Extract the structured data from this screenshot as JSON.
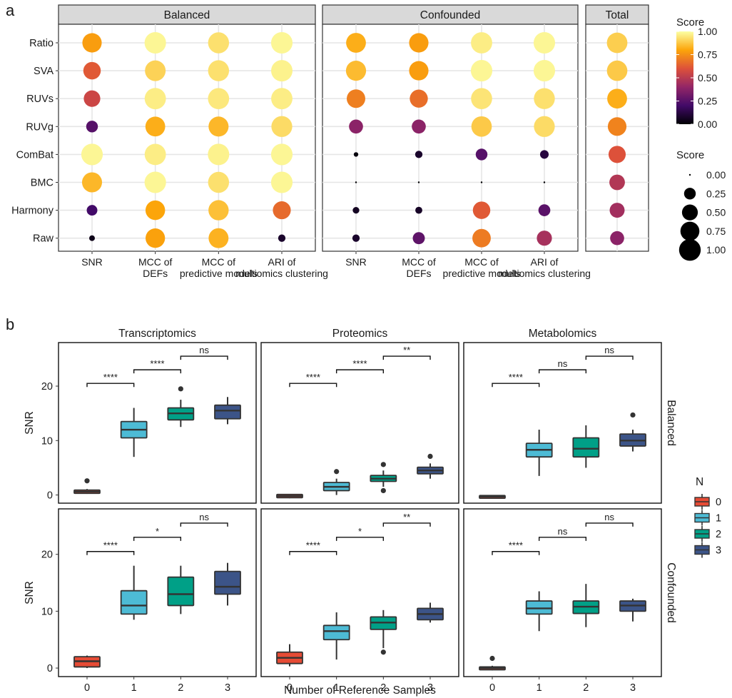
{
  "panel_labels": [
    "a",
    "b"
  ],
  "chart_data": [
    {
      "type": "scatter",
      "subtype": "dot-matrix",
      "facets": [
        {
          "title": "Balanced",
          "columns": [
            "SNR",
            "MCC of DEFs",
            "MCC of predictive models",
            "ARI of multiomics clustering"
          ]
        },
        {
          "title": "Confounded",
          "columns": [
            "SNR",
            "MCC of DEFs",
            "MCC of predictive models",
            "ARI of multiomics clustering"
          ]
        },
        {
          "title": "Total",
          "columns": [
            ""
          ]
        }
      ],
      "rows": [
        "Ratio",
        "SVA",
        "RUVs",
        "RUVg",
        "ComBat",
        "BMC",
        "Harmony",
        "Raw"
      ],
      "values": {
        "Balanced": [
          [
            0.78,
            0.98,
            0.93,
            0.98
          ],
          [
            0.62,
            0.9,
            0.93,
            0.97
          ],
          [
            0.55,
            0.96,
            0.95,
            0.96
          ],
          [
            0.25,
            0.82,
            0.84,
            0.92
          ],
          [
            0.98,
            0.96,
            0.97,
            0.98
          ],
          [
            0.84,
            0.98,
            0.93,
            0.98
          ],
          [
            0.2,
            0.8,
            0.86,
            0.66
          ],
          [
            0.04,
            0.79,
            0.83,
            0.08
          ]
        ],
        "Confounded": [
          [
            0.82,
            0.78,
            0.96,
            0.98
          ],
          [
            0.85,
            0.78,
            0.98,
            0.98
          ],
          [
            0.71,
            0.67,
            0.94,
            0.93
          ],
          [
            0.38,
            0.38,
            0.88,
            0.92
          ],
          [
            0.02,
            0.08,
            0.25,
            0.12
          ],
          [
            0.0,
            0.0,
            0.0,
            0.0
          ],
          [
            0.06,
            0.07,
            0.62,
            0.26
          ],
          [
            0.08,
            0.27,
            0.7,
            0.45
          ]
        ],
        "Total": [
          [
            0.89
          ],
          [
            0.88
          ],
          [
            0.82
          ],
          [
            0.72
          ],
          [
            0.6
          ],
          [
            0.48
          ],
          [
            0.44
          ],
          [
            0.38
          ]
        ]
      },
      "color_legend": {
        "title": "Score",
        "ticks": [
          "1.00",
          "0.75",
          "0.50",
          "0.25",
          "0.00"
        ],
        "colors": [
          "#000004",
          "#420a68",
          "#932667",
          "#dd513a",
          "#fca50a",
          "#fcffa4"
        ]
      },
      "size_legend": {
        "title": "Score",
        "values": [
          "0.00",
          "0.25",
          "0.50",
          "0.75",
          "1.00"
        ]
      },
      "xlim": [
        0,
        1
      ]
    },
    {
      "type": "box",
      "xlabel": "Number of Reference Samples",
      "ylabel": "SNR",
      "col_facets": [
        "Transcriptomics",
        "Proteomics",
        "Metabolomics"
      ],
      "row_facets": [
        "Balanced",
        "Confounded"
      ],
      "x_ticks": [
        "0",
        "1",
        "2",
        "3"
      ],
      "y_ticks": [
        "0",
        "10",
        "20"
      ],
      "ylim": [
        -1.5,
        28
      ],
      "legend": {
        "title": "N",
        "items": [
          {
            "label": "0",
            "color": "#e64b35"
          },
          {
            "label": "1",
            "color": "#4dbbd5"
          },
          {
            "label": "2",
            "color": "#00a087"
          },
          {
            "label": "3",
            "color": "#3c5488"
          }
        ]
      },
      "panels": [
        {
          "row": "Balanced",
          "col": "Transcriptomics",
          "boxes": [
            {
              "n": 0,
              "q1": 0.3,
              "median": 0.6,
              "q3": 0.9,
              "whisker_low": 0.2,
              "whisker_high": 1.1,
              "outliers": [
                2.6
              ]
            },
            {
              "n": 1,
              "q1": 10.5,
              "median": 12.0,
              "q3": 13.5,
              "whisker_low": 7.0,
              "whisker_high": 16.0,
              "outliers": []
            },
            {
              "n": 2,
              "q1": 13.8,
              "median": 15.0,
              "q3": 16.0,
              "whisker_low": 12.5,
              "whisker_high": 17.5,
              "outliers": [
                19.5
              ]
            },
            {
              "n": 3,
              "q1": 14.0,
              "median": 15.5,
              "q3": 16.5,
              "whisker_low": 13.0,
              "whisker_high": 18.0,
              "outliers": []
            }
          ],
          "significance": [
            {
              "from": 0,
              "to": 1,
              "y": 20.5,
              "label": "****"
            },
            {
              "from": 1,
              "to": 2,
              "y": 23.0,
              "label": "****"
            },
            {
              "from": 2,
              "to": 3,
              "y": 25.5,
              "label": "ns"
            }
          ]
        },
        {
          "row": "Balanced",
          "col": "Proteomics",
          "boxes": [
            {
              "n": 0,
              "q1": -0.5,
              "median": -0.2,
              "q3": 0.1,
              "whisker_low": -0.6,
              "whisker_high": 0.2,
              "outliers": []
            },
            {
              "n": 1,
              "q1": 0.8,
              "median": 1.5,
              "q3": 2.3,
              "whisker_low": 0.0,
              "whisker_high": 3.0,
              "outliers": [
                4.3
              ]
            },
            {
              "n": 2,
              "q1": 2.5,
              "median": 3.0,
              "q3": 3.6,
              "whisker_low": 1.5,
              "whisker_high": 4.5,
              "outliers": [
                5.6,
                0.8
              ]
            },
            {
              "n": 3,
              "q1": 3.9,
              "median": 4.5,
              "q3": 5.1,
              "whisker_low": 3.0,
              "whisker_high": 5.8,
              "outliers": [
                7.1
              ]
            }
          ],
          "significance": [
            {
              "from": 0,
              "to": 1,
              "y": 20.5,
              "label": "****"
            },
            {
              "from": 1,
              "to": 2,
              "y": 23.0,
              "label": "****"
            },
            {
              "from": 2,
              "to": 3,
              "y": 25.5,
              "label": "**"
            }
          ]
        },
        {
          "row": "Balanced",
          "col": "Metabolomics",
          "boxes": [
            {
              "n": 0,
              "q1": -0.6,
              "median": -0.3,
              "q3": -0.1,
              "whisker_low": -0.7,
              "whisker_high": 0.0,
              "outliers": []
            },
            {
              "n": 1,
              "q1": 7.0,
              "median": 8.3,
              "q3": 9.5,
              "whisker_low": 3.5,
              "whisker_high": 12.0,
              "outliers": []
            },
            {
              "n": 2,
              "q1": 7.0,
              "median": 8.5,
              "q3": 10.5,
              "whisker_low": 5.0,
              "whisker_high": 12.8,
              "outliers": []
            },
            {
              "n": 3,
              "q1": 9.0,
              "median": 10.0,
              "q3": 11.2,
              "whisker_low": 8.0,
              "whisker_high": 12.0,
              "outliers": [
                14.7
              ]
            }
          ],
          "significance": [
            {
              "from": 0,
              "to": 1,
              "y": 20.5,
              "label": "****"
            },
            {
              "from": 1,
              "to": 2,
              "y": 23.0,
              "label": "ns"
            },
            {
              "from": 2,
              "to": 3,
              "y": 25.5,
              "label": "ns"
            }
          ]
        },
        {
          "row": "Confounded",
          "col": "Transcriptomics",
          "boxes": [
            {
              "n": 0,
              "q1": 0.2,
              "median": 1.2,
              "q3": 2.0,
              "whisker_low": 0.0,
              "whisker_high": 2.2,
              "outliers": []
            },
            {
              "n": 1,
              "q1": 9.5,
              "median": 11.0,
              "q3": 13.6,
              "whisker_low": 8.5,
              "whisker_high": 18.0,
              "outliers": []
            },
            {
              "n": 2,
              "q1": 11.0,
              "median": 13.0,
              "q3": 16.0,
              "whisker_low": 9.5,
              "whisker_high": 18.0,
              "outliers": []
            },
            {
              "n": 3,
              "q1": 13.0,
              "median": 14.3,
              "q3": 17.0,
              "whisker_low": 11.0,
              "whisker_high": 18.5,
              "outliers": []
            }
          ],
          "significance": [
            {
              "from": 0,
              "to": 1,
              "y": 20.5,
              "label": "****"
            },
            {
              "from": 1,
              "to": 2,
              "y": 23.0,
              "label": "*"
            },
            {
              "from": 2,
              "to": 3,
              "y": 25.5,
              "label": "ns"
            }
          ]
        },
        {
          "row": "Confounded",
          "col": "Proteomics",
          "boxes": [
            {
              "n": 0,
              "q1": 0.8,
              "median": 1.8,
              "q3": 2.8,
              "whisker_low": 0.3,
              "whisker_high": 4.2,
              "outliers": []
            },
            {
              "n": 1,
              "q1": 5.0,
              "median": 6.5,
              "q3": 7.5,
              "whisker_low": 1.5,
              "whisker_high": 9.8,
              "outliers": []
            },
            {
              "n": 2,
              "q1": 6.8,
              "median": 8.0,
              "q3": 9.0,
              "whisker_low": 3.5,
              "whisker_high": 10.2,
              "outliers": [
                2.8
              ]
            },
            {
              "n": 3,
              "q1": 8.5,
              "median": 9.5,
              "q3": 10.5,
              "whisker_low": 8.0,
              "whisker_high": 11.5,
              "outliers": []
            }
          ],
          "significance": [
            {
              "from": 0,
              "to": 1,
              "y": 20.5,
              "label": "****"
            },
            {
              "from": 1,
              "to": 2,
              "y": 23.0,
              "label": "*"
            },
            {
              "from": 2,
              "to": 3,
              "y": 25.5,
              "label": "**"
            }
          ]
        },
        {
          "row": "Confounded",
          "col": "Metabolomics",
          "boxes": [
            {
              "n": 0,
              "q1": -0.3,
              "median": 0.0,
              "q3": 0.2,
              "whisker_low": -0.4,
              "whisker_high": 0.4,
              "outliers": [
                1.7
              ]
            },
            {
              "n": 1,
              "q1": 9.5,
              "median": 10.5,
              "q3": 11.8,
              "whisker_low": 6.5,
              "whisker_high": 13.5,
              "outliers": []
            },
            {
              "n": 2,
              "q1": 9.6,
              "median": 10.8,
              "q3": 11.8,
              "whisker_low": 7.2,
              "whisker_high": 14.8,
              "outliers": []
            },
            {
              "n": 3,
              "q1": 10.0,
              "median": 11.0,
              "q3": 11.8,
              "whisker_low": 8.2,
              "whisker_high": 12.2,
              "outliers": []
            }
          ],
          "significance": [
            {
              "from": 0,
              "to": 1,
              "y": 20.5,
              "label": "****"
            },
            {
              "from": 1,
              "to": 2,
              "y": 23.0,
              "label": "ns"
            },
            {
              "from": 2,
              "to": 3,
              "y": 25.5,
              "label": "ns"
            }
          ]
        }
      ]
    }
  ]
}
